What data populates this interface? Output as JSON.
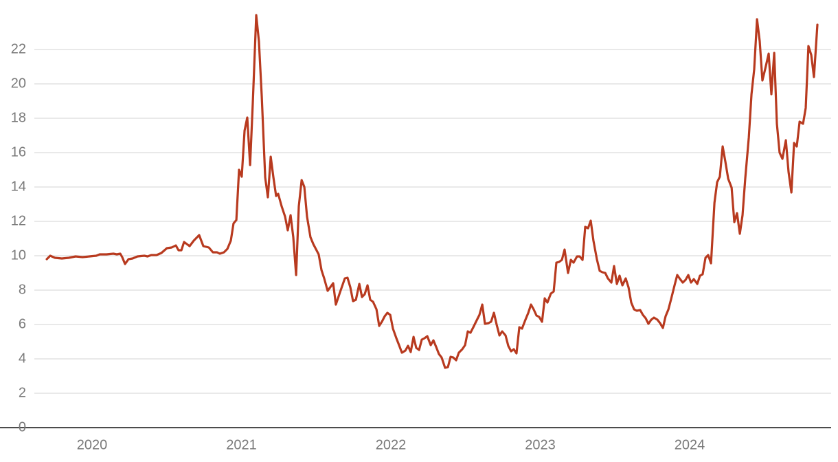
{
  "chart_data": {
    "type": "line",
    "x": [
      2019.697,
      2019.72,
      2019.752,
      2019.798,
      2019.844,
      2019.89,
      2019.936,
      2019.982,
      2020.028,
      2020.051,
      2020.097,
      2020.143,
      2020.166,
      2020.189,
      2020.202,
      2020.221,
      2020.244,
      2020.271,
      2020.304,
      2020.35,
      2020.372,
      2020.396,
      2020.432,
      2020.464,
      2020.501,
      2020.533,
      2020.561,
      2020.579,
      2020.598,
      2020.616,
      2020.653,
      2020.681,
      2020.717,
      2020.745,
      2020.782,
      2020.809,
      2020.837,
      2020.855,
      2020.883,
      2020.906,
      2020.929,
      2020.947,
      2020.966,
      2020.984,
      2021.002,
      2021.021,
      2021.039,
      2021.058,
      2021.076,
      2021.099,
      2021.117,
      2021.136,
      2021.159,
      2021.177,
      2021.196,
      2021.214,
      2021.232,
      2021.246,
      2021.269,
      2021.292,
      2021.31,
      2021.329,
      2021.347,
      2021.366,
      2021.384,
      2021.403,
      2021.421,
      2021.439,
      2021.462,
      2021.481,
      2021.517,
      2021.536,
      2021.554,
      2021.577,
      2021.614,
      2021.632,
      2021.66,
      2021.692,
      2021.71,
      2021.729,
      2021.747,
      2021.766,
      2021.789,
      2021.807,
      2021.825,
      2021.844,
      2021.862,
      2021.881,
      2021.904,
      2021.922,
      2021.94,
      2021.959,
      2021.977,
      2021.996,
      2022.014,
      2022.037,
      2022.055,
      2022.074,
      2022.097,
      2022.115,
      2022.133,
      2022.152,
      2022.17,
      2022.189,
      2022.207,
      2022.225,
      2022.244,
      2022.267,
      2022.285,
      2022.304,
      2022.322,
      2022.34,
      2022.363,
      2022.382,
      2022.4,
      2022.418,
      2022.437,
      2022.455,
      2022.478,
      2022.497,
      2022.515,
      2022.533,
      2022.552,
      2022.57,
      2022.593,
      2022.612,
      2022.63,
      2022.653,
      2022.671,
      2022.69,
      2022.708,
      2022.727,
      2022.745,
      2022.768,
      2022.786,
      2022.805,
      2022.823,
      2022.841,
      2022.86,
      2022.878,
      2022.901,
      2022.92,
      2022.938,
      2022.956,
      2022.975,
      2022.993,
      2023.012,
      2023.03,
      2023.048,
      2023.071,
      2023.09,
      2023.108,
      2023.126,
      2023.145,
      2023.163,
      2023.186,
      2023.205,
      2023.223,
      2023.246,
      2023.264,
      2023.283,
      2023.301,
      2023.32,
      2023.338,
      2023.356,
      2023.379,
      2023.398,
      2023.416,
      2023.435,
      2023.453,
      2023.476,
      2023.494,
      2023.513,
      2023.531,
      2023.55,
      2023.572,
      2023.591,
      2023.609,
      2023.628,
      2023.646,
      2023.669,
      2023.687,
      2023.706,
      2023.724,
      2023.743,
      2023.761,
      2023.784,
      2023.802,
      2023.821,
      2023.839,
      2023.858,
      2023.876,
      2023.899,
      2023.917,
      2023.936,
      2023.954,
      2023.973,
      2023.991,
      2024.009,
      2024.028,
      2024.051,
      2024.069,
      2024.087,
      2024.106,
      2024.124,
      2024.143,
      2024.166,
      2024.184,
      2024.202,
      2024.221,
      2024.239,
      2024.258,
      2024.281,
      2024.299,
      2024.317,
      2024.336,
      2024.354,
      2024.372,
      2024.396,
      2024.414,
      2024.432,
      2024.451,
      2024.469,
      2024.487,
      2024.506,
      2024.529,
      2024.547,
      2024.566,
      2024.584,
      2024.602,
      2024.621,
      2024.644,
      2024.662,
      2024.681,
      2024.699,
      2024.717,
      2024.736,
      2024.759,
      2024.777,
      2024.795,
      2024.814,
      2024.832,
      2024.855
    ],
    "series": [
      {
        "color": "#b83a1f",
        "values": [
          9.8,
          10.0,
          9.88,
          9.84,
          9.88,
          9.96,
          9.92,
          9.96,
          10.0,
          10.08,
          10.08,
          10.12,
          10.08,
          10.12,
          9.92,
          9.52,
          9.8,
          9.84,
          9.96,
          10.0,
          9.96,
          10.04,
          10.04,
          10.16,
          10.44,
          10.48,
          10.6,
          10.32,
          10.32,
          10.8,
          10.56,
          10.88,
          11.2,
          10.56,
          10.48,
          10.2,
          10.2,
          10.12,
          10.2,
          10.4,
          10.88,
          11.88,
          12.08,
          15.0,
          14.6,
          17.28,
          18.04,
          15.28,
          18.88,
          24.0,
          22.48,
          19.28,
          14.56,
          13.4,
          15.76,
          14.56,
          13.48,
          13.6,
          12.88,
          12.28,
          11.48,
          12.36,
          11.08,
          8.88,
          12.88,
          14.4,
          14.0,
          12.28,
          11.08,
          10.68,
          10.08,
          9.16,
          8.68,
          7.96,
          8.4,
          7.16,
          7.88,
          8.68,
          8.72,
          8.16,
          7.36,
          7.44,
          8.36,
          7.6,
          7.76,
          8.28,
          7.44,
          7.32,
          6.88,
          5.92,
          6.16,
          6.48,
          6.68,
          6.56,
          5.76,
          5.2,
          4.8,
          4.36,
          4.48,
          4.76,
          4.4,
          5.28,
          4.64,
          4.52,
          5.12,
          5.2,
          5.32,
          4.8,
          5.08,
          4.68,
          4.28,
          4.08,
          3.48,
          3.52,
          4.12,
          4.08,
          3.92,
          4.36,
          4.56,
          4.8,
          5.6,
          5.52,
          5.84,
          6.16,
          6.56,
          7.16,
          6.04,
          6.08,
          6.16,
          6.68,
          6.0,
          5.36,
          5.6,
          5.36,
          4.76,
          4.44,
          4.56,
          4.32,
          5.84,
          5.76,
          6.28,
          6.68,
          7.16,
          6.88,
          6.52,
          6.44,
          6.16,
          7.52,
          7.28,
          7.8,
          7.92,
          9.6,
          9.64,
          9.76,
          10.36,
          9.0,
          9.76,
          9.6,
          9.96,
          9.96,
          9.76,
          11.68,
          11.6,
          12.04,
          10.88,
          9.8,
          9.12,
          9.04,
          9.0,
          8.68,
          8.44,
          9.4,
          8.36,
          8.84,
          8.28,
          8.68,
          8.16,
          7.28,
          6.88,
          6.8,
          6.84,
          6.56,
          6.36,
          6.04,
          6.28,
          6.4,
          6.28,
          6.08,
          5.8,
          6.48,
          6.88,
          7.48,
          8.28,
          8.88,
          8.64,
          8.44,
          8.6,
          8.88,
          8.44,
          8.64,
          8.36,
          8.84,
          8.92,
          9.88,
          10.04,
          9.56,
          13.08,
          14.28,
          14.6,
          16.36,
          15.48,
          14.48,
          13.96,
          11.96,
          12.48,
          11.28,
          12.36,
          14.48,
          16.88,
          19.4,
          20.84,
          23.76,
          22.48,
          20.2,
          20.88,
          21.76,
          19.4,
          21.8,
          17.68,
          16.0,
          15.64,
          16.72,
          14.88,
          13.68,
          16.56,
          16.36,
          17.8,
          17.68,
          18.6,
          22.2,
          21.68,
          20.4,
          23.44
        ]
      }
    ],
    "xlim": [
      2019.384,
      2024.947
    ],
    "xticks": [
      2020,
      2021,
      2022,
      2023,
      2024
    ],
    "ylim": [
      0,
      24
    ],
    "yticks": [
      0,
      2,
      4,
      6,
      8,
      10,
      12,
      14,
      16,
      18,
      20,
      22
    ],
    "grid": true
  }
}
